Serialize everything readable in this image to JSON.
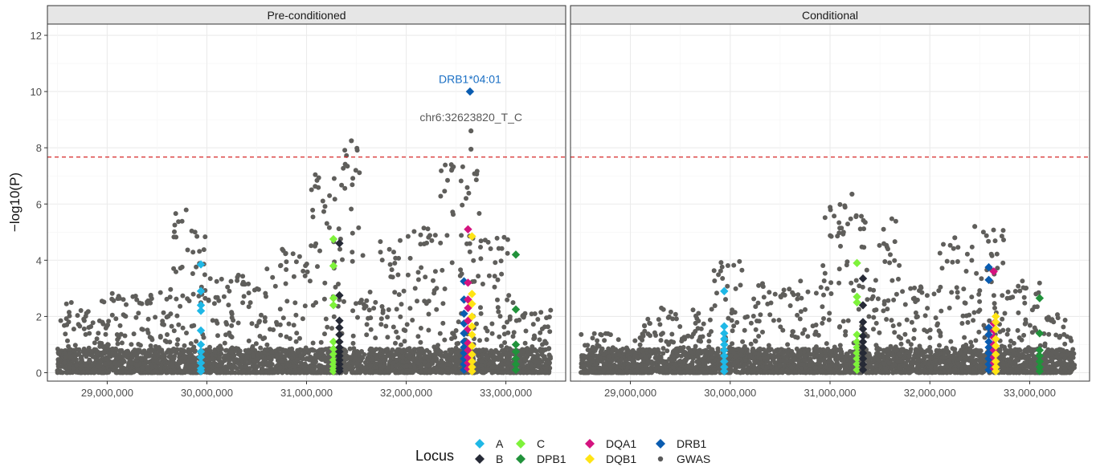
{
  "chart_data": [
    {
      "type": "scatter",
      "facet": "Pre-conditioned",
      "xlabel": "",
      "ylabel": "−log10(P)",
      "xlim": [
        28400000,
        33600000
      ],
      "ylim": [
        -0.3,
        12.4
      ],
      "x_ticks": [
        29000000,
        30000000,
        31000000,
        32000000,
        33000000
      ],
      "x_tick_labels": [
        "29,000,000",
        "30,000,000",
        "31,000,000",
        "32,000,000",
        "33,000,000"
      ],
      "y_ticks": [
        0,
        2,
        4,
        6,
        8,
        10,
        12
      ],
      "y_tick_labels": [
        "0",
        "2",
        "4",
        "6",
        "8",
        "10",
        "12"
      ],
      "threshold_line": 7.67,
      "gwas_clusters": [
        {
          "x_start": 28500000,
          "x_end": 28900000,
          "y_max": 2.5
        },
        {
          "x_start": 28900000,
          "x_end": 29600000,
          "y_max": 2.9
        },
        {
          "x_start": 29600000,
          "x_end": 30000000,
          "y_max": 5.9
        },
        {
          "x_start": 30000000,
          "x_end": 30600000,
          "y_max": 3.5
        },
        {
          "x_start": 30600000,
          "x_end": 31000000,
          "y_max": 4.4
        },
        {
          "x_start": 31000000,
          "x_end": 31300000,
          "y_max": 7.2
        },
        {
          "x_start": 31300000,
          "x_end": 31550000,
          "y_max": 8.2
        },
        {
          "x_start": 31550000,
          "x_end": 32000000,
          "y_max": 4.8
        },
        {
          "x_start": 32000000,
          "x_end": 32300000,
          "y_max": 5.2
        },
        {
          "x_start": 32300000,
          "x_end": 32550000,
          "y_max": 7.6
        },
        {
          "x_start": 32550000,
          "x_end": 32750000,
          "y_max": 7.7
        },
        {
          "x_start": 32750000,
          "x_end": 33100000,
          "y_max": 4.9
        },
        {
          "x_start": 33100000,
          "x_end": 33450000,
          "y_max": 2.3
        }
      ],
      "gwas_points": [
        {
          "x": 32650000,
          "y": 8.6
        },
        {
          "x": 32650000,
          "y": 7.95
        },
        {
          "x": 31450000,
          "y": 8.25
        }
      ],
      "hla_points": [
        {
          "locus": "A",
          "x": 29940000,
          "y": [
            3.85,
            2.9,
            2.4,
            2.2,
            1.5,
            1.0,
            0.75,
            0.55,
            0.35,
            0.15,
            0.05
          ]
        },
        {
          "locus": "C",
          "x": 31270000,
          "y": [
            4.75,
            3.8,
            2.65,
            2.4,
            1.1,
            0.85,
            0.65,
            0.45,
            0.3,
            0.15,
            0.05
          ]
        },
        {
          "locus": "B",
          "x": 31330000,
          "y": [
            4.6,
            2.75,
            1.85,
            1.6,
            1.35,
            1.1,
            0.9,
            0.75,
            0.6,
            0.45,
            0.3,
            0.15,
            0.05
          ]
        },
        {
          "locus": "DRB1",
          "x": 32580000,
          "y": [
            3.25,
            2.6,
            2.1,
            1.75,
            1.4,
            1.1,
            0.9,
            0.7,
            0.5,
            0.3,
            0.1
          ]
        },
        {
          "locus": "DRB1",
          "x": 32640000,
          "y": [
            10.0
          ]
        },
        {
          "locus": "DQA1",
          "x": 32620000,
          "y": [
            5.1,
            3.2,
            2.6,
            2.3,
            1.85,
            1.55,
            1.05,
            0.8,
            0.55,
            0.35,
            0.15
          ]
        },
        {
          "locus": "DQB1",
          "x": 32660000,
          "y": [
            4.85,
            2.8,
            2.45,
            2.0,
            1.65,
            1.35,
            0.95,
            0.65,
            0.4,
            0.2,
            0.05
          ]
        },
        {
          "locus": "DPB1",
          "x": 33100000,
          "y": [
            4.2,
            2.25,
            1.0,
            0.75,
            0.5,
            0.3,
            0.1
          ]
        }
      ],
      "annotations": [
        {
          "text": "DRB1*04:01",
          "x": 32640000,
          "y": 10.3,
          "color": "#1a6fc4"
        },
        {
          "text": "chr6:32623820_T_C",
          "x": 32650000,
          "y": 8.95,
          "color": "#595959"
        }
      ]
    },
    {
      "type": "scatter",
      "facet": "Conditional",
      "xlim": [
        28400000,
        33600000
      ],
      "ylim": [
        -0.3,
        12.4
      ],
      "x_ticks": [
        29000000,
        30000000,
        31000000,
        32000000,
        33000000
      ],
      "x_tick_labels": [
        "29,000,000",
        "30,000,000",
        "31,000,000",
        "32,000,000",
        "33,000,000"
      ],
      "threshold_line": 7.67,
      "gwas_clusters": [
        {
          "x_start": 28500000,
          "x_end": 29100000,
          "y_max": 1.4
        },
        {
          "x_start": 29100000,
          "x_end": 29800000,
          "y_max": 2.3
        },
        {
          "x_start": 29800000,
          "x_end": 30200000,
          "y_max": 4.0
        },
        {
          "x_start": 30200000,
          "x_end": 30900000,
          "y_max": 3.3
        },
        {
          "x_start": 30900000,
          "x_end": 31200000,
          "y_max": 6.1
        },
        {
          "x_start": 31200000,
          "x_end": 31400000,
          "y_max": 6.3
        },
        {
          "x_start": 31400000,
          "x_end": 31700000,
          "y_max": 5.5
        },
        {
          "x_start": 31700000,
          "x_end": 32100000,
          "y_max": 3.1
        },
        {
          "x_start": 32100000,
          "x_end": 32500000,
          "y_max": 4.8
        },
        {
          "x_start": 32500000,
          "x_end": 32800000,
          "y_max": 5.2
        },
        {
          "x_start": 32800000,
          "x_end": 33100000,
          "y_max": 3.3
        },
        {
          "x_start": 33100000,
          "x_end": 33450000,
          "y_max": 2.2
        }
      ],
      "gwas_points": [
        {
          "x": 32450000,
          "y": 5.2
        },
        {
          "x": 32250000,
          "y": 4.8
        },
        {
          "x": 31220000,
          "y": 6.35
        }
      ],
      "hla_points": [
        {
          "locus": "A",
          "x": 29940000,
          "y": [
            2.9,
            1.65,
            1.4,
            1.2,
            1.0,
            0.8,
            0.6,
            0.4,
            0.2,
            0.05
          ]
        },
        {
          "locus": "C",
          "x": 31270000,
          "y": [
            3.9,
            2.7,
            2.5,
            1.35,
            1.1,
            0.9,
            0.7,
            0.5,
            0.3,
            0.1
          ]
        },
        {
          "locus": "B",
          "x": 31330000,
          "y": [
            3.35,
            2.4,
            1.8,
            1.55,
            1.3,
            1.1,
            0.9,
            0.7,
            0.5,
            0.3,
            0.1
          ]
        },
        {
          "locus": "DRB1",
          "x": 32590000,
          "y": [
            3.75,
            3.3,
            1.6,
            1.35,
            1.1,
            0.9,
            0.7,
            0.5,
            0.3,
            0.1
          ]
        },
        {
          "locus": "DQA1",
          "x": 32640000,
          "y": [
            3.6,
            1.75,
            1.5,
            1.25,
            1.0,
            0.8,
            0.55,
            0.35,
            0.15
          ]
        },
        {
          "locus": "DQB1",
          "x": 32660000,
          "y": [
            2.0,
            1.8,
            1.55,
            1.2,
            0.95,
            0.65,
            0.4,
            0.2,
            0.05
          ]
        },
        {
          "locus": "DPB1",
          "x": 33100000,
          "y": [
            2.65,
            1.4,
            0.8,
            0.6,
            0.4,
            0.2,
            0.05
          ]
        }
      ],
      "annotations": []
    }
  ],
  "legend": {
    "title": "Locus",
    "placement": "bottom",
    "items": [
      {
        "label": "A",
        "color": "#1fb8e6",
        "shape": "diamond"
      },
      {
        "label": "B",
        "color": "#262a36",
        "shape": "diamond"
      },
      {
        "label": "C",
        "color": "#7ef23a",
        "shape": "diamond"
      },
      {
        "label": "DPB1",
        "color": "#21923b",
        "shape": "diamond"
      },
      {
        "label": "DQA1",
        "color": "#d4137f",
        "shape": "diamond"
      },
      {
        "label": "DQB1",
        "color": "#ffe414",
        "shape": "diamond"
      },
      {
        "label": "DRB1",
        "color": "#0a5cb0",
        "shape": "diamond"
      },
      {
        "label": "GWAS",
        "color": "#5a5a5a",
        "shape": "dot"
      }
    ]
  },
  "colors": {
    "gwas": "#5f5e5b",
    "threshold": "#d62728",
    "strip_bg": "#e6e6e6",
    "grid": "#ebebeb",
    "panel_border": "#333333"
  }
}
